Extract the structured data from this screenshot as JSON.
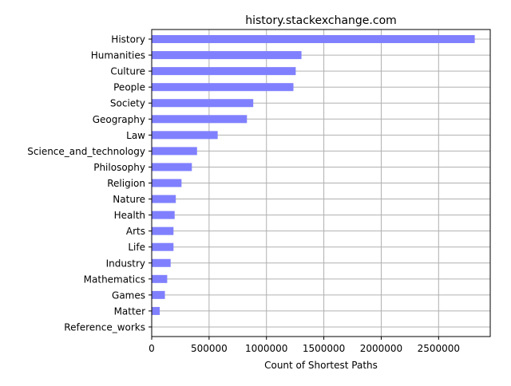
{
  "chart_data": {
    "type": "bar",
    "orientation": "horizontal",
    "title": "history.stackexchange.com",
    "xlabel": "Count of Shortest Paths",
    "ylabel": "",
    "categories": [
      "History",
      "Humanities",
      "Culture",
      "People",
      "Society",
      "Geography",
      "Law",
      "Science_and_technology",
      "Philosophy",
      "Religion",
      "Nature",
      "Health",
      "Arts",
      "Life",
      "Industry",
      "Mathematics",
      "Games",
      "Matter",
      "Reference_works"
    ],
    "values": [
      2815000,
      1305000,
      1255000,
      1235000,
      885000,
      830000,
      575000,
      395000,
      350000,
      260000,
      210000,
      200000,
      190000,
      190000,
      165000,
      135000,
      115000,
      70000,
      3000
    ],
    "xlim": [
      0,
      2950000
    ],
    "xticks": [
      0,
      500000,
      1000000,
      1500000,
      2000000,
      2500000
    ],
    "xtick_labels": [
      "0",
      "500000",
      "1000000",
      "1500000",
      "2000000",
      "2500000"
    ],
    "bar_color": "#8080ff",
    "grid": true,
    "legend": "none"
  }
}
